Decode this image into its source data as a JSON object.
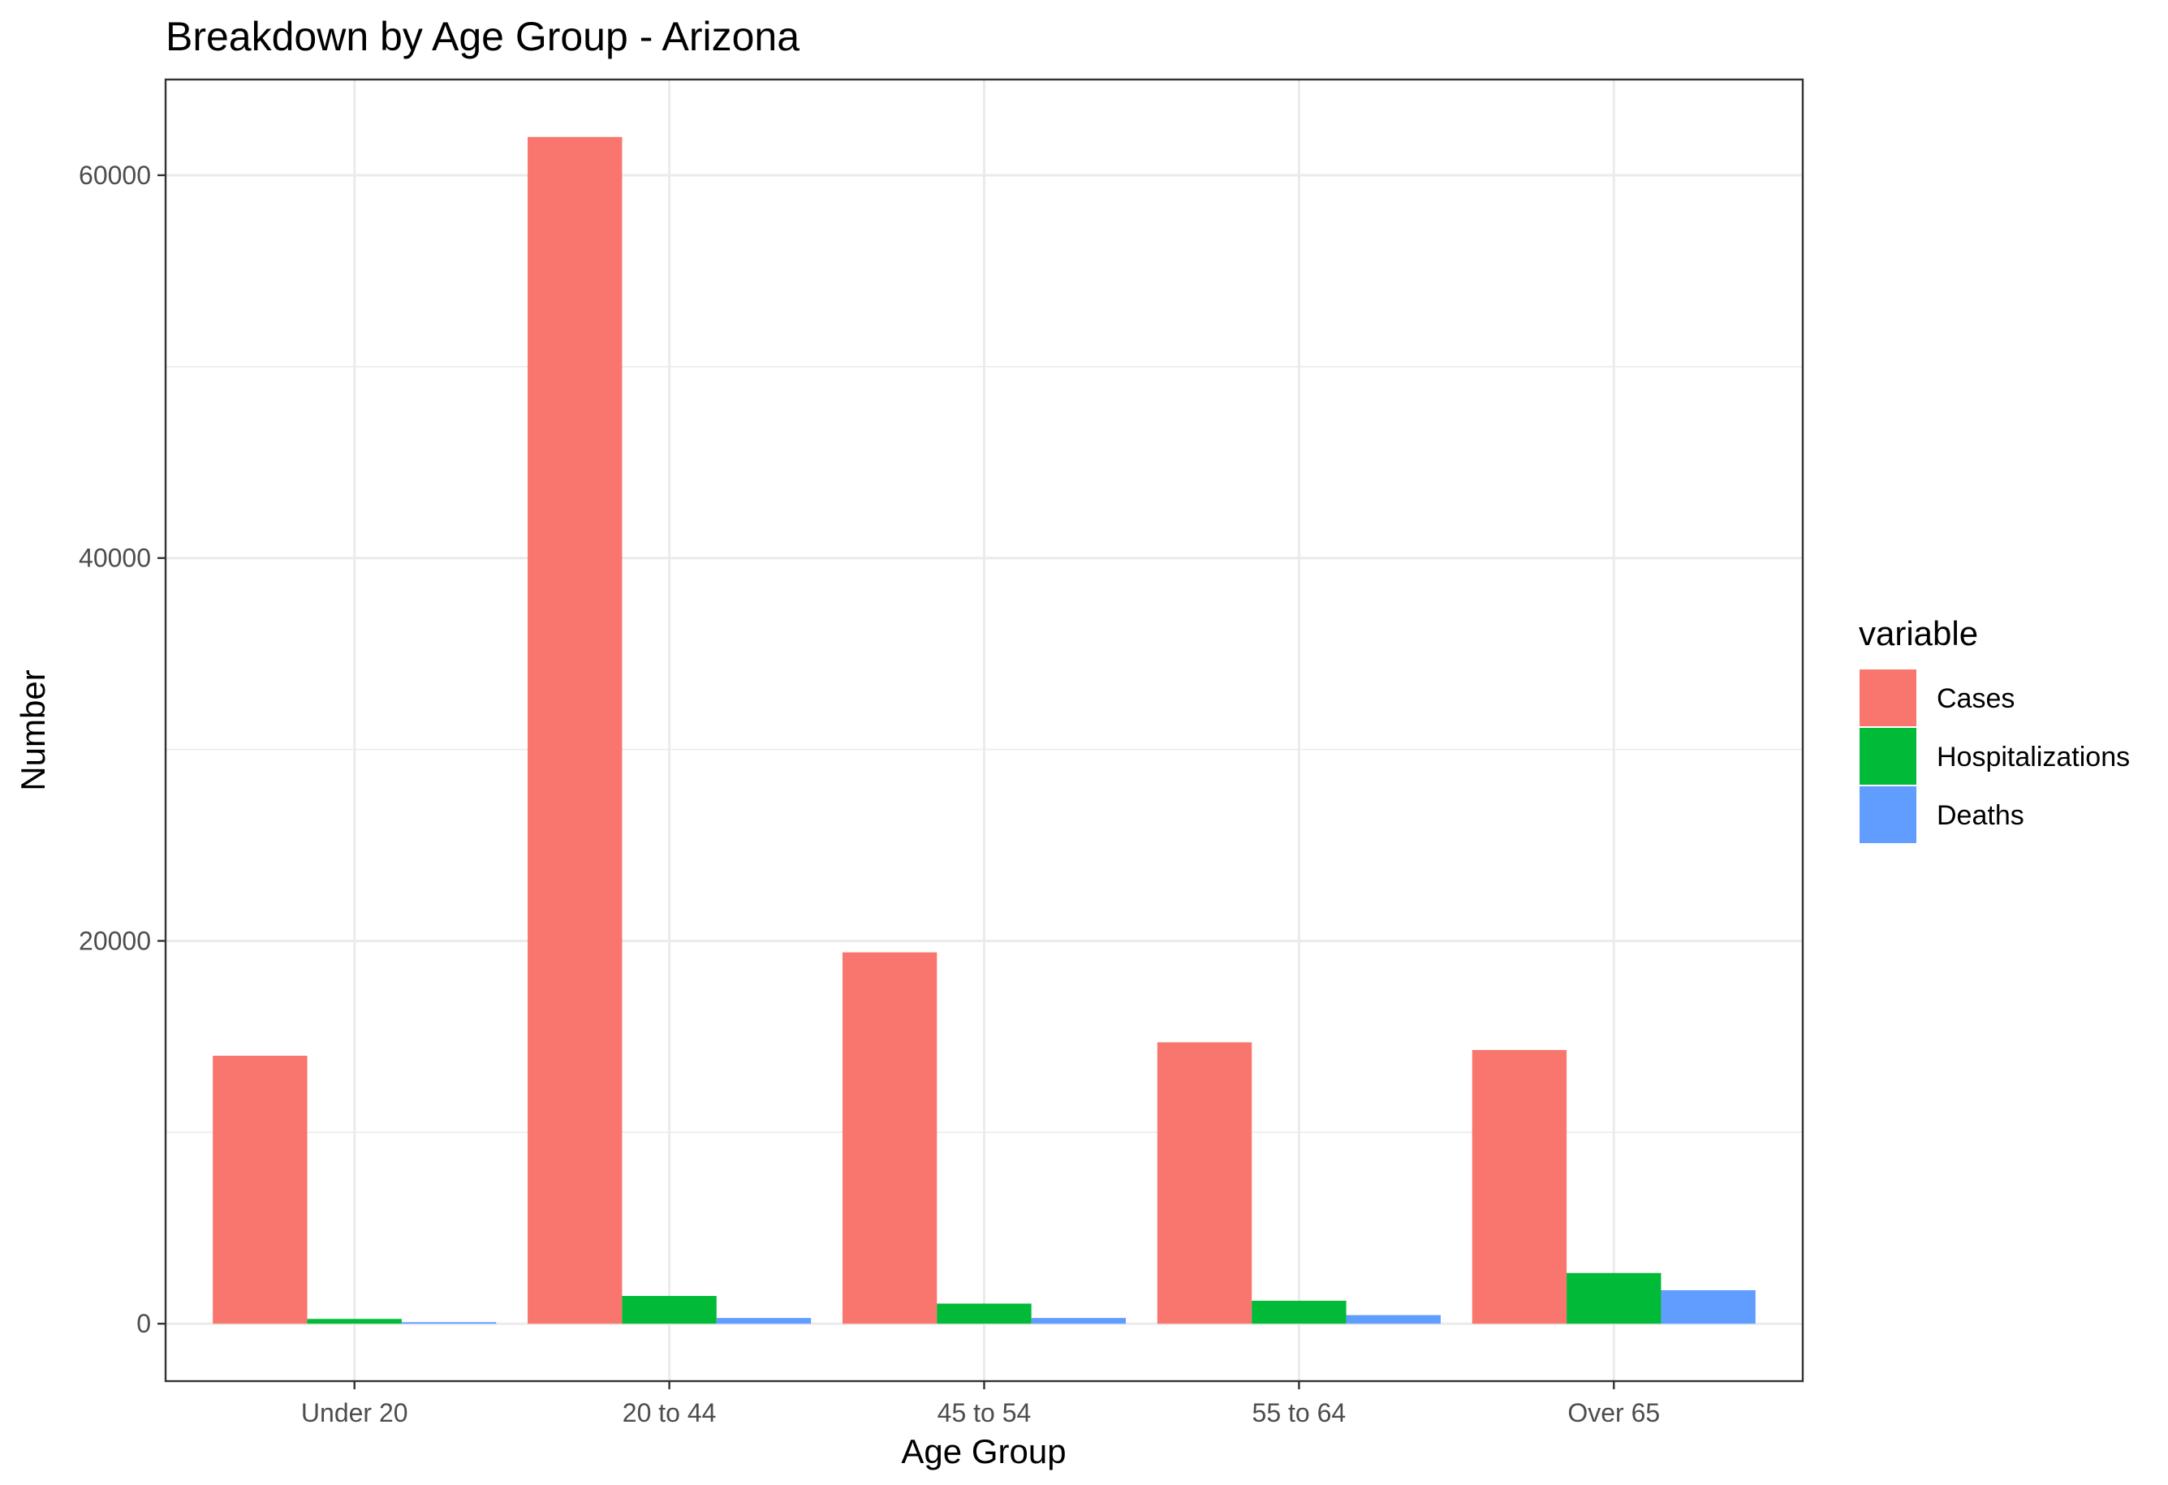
{
  "chart_data": {
    "type": "bar",
    "title": "Breakdown by Age Group - Arizona",
    "xlabel": "Age Group",
    "ylabel": "Number",
    "categories": [
      "Under 20",
      "20 to 44",
      "45 to 54",
      "55 to 64",
      "Over 65"
    ],
    "series": [
      {
        "name": "Cases",
        "color": "#F8766D",
        "values": [
          14000,
          62000,
          19400,
          14700,
          14300
        ]
      },
      {
        "name": "Hospitalizations",
        "color": "#00BA38",
        "values": [
          250,
          1450,
          1050,
          1200,
          2650
        ]
      },
      {
        "name": "Deaths",
        "color": "#619CFF",
        "values": [
          80,
          300,
          300,
          450,
          1750
        ]
      }
    ],
    "ylim": [
      -3000,
      65000
    ],
    "yticks": [
      0,
      20000,
      40000,
      60000
    ],
    "ytick_labels": [
      "0",
      "20000",
      "40000",
      "60000"
    ],
    "y_minor_ticks": [
      10000,
      30000,
      50000
    ],
    "grid": true,
    "legend": {
      "title": "variable",
      "position": "right"
    }
  }
}
